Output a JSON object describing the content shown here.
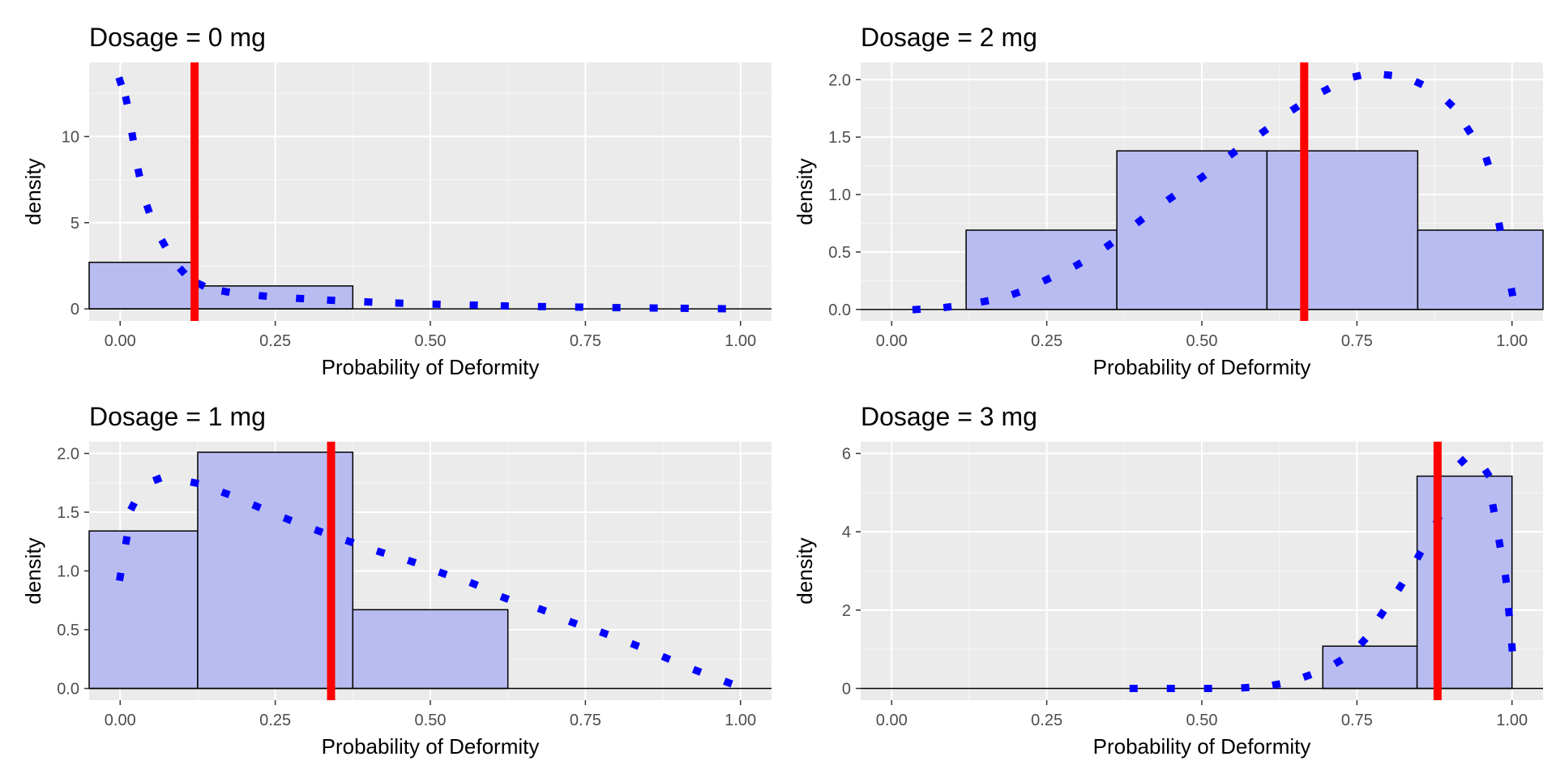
{
  "colors": {
    "panel_background": "#ebebeb",
    "grid": "#ffffff",
    "bar_fill": "#b9bcf0",
    "bar_outline": "#000000",
    "density_curve": "#0000ff",
    "mean_line": "#ff0000"
  },
  "chart_data": [
    {
      "type": "bar",
      "title": "Dosage = 0 mg",
      "xlabel": "Probability of Deformity",
      "ylabel": "density",
      "xlim": [
        -0.05,
        1.05
      ],
      "ylim": [
        -0.7,
        14.3
      ],
      "xticks": [
        0,
        0.25,
        0.5,
        0.75,
        1
      ],
      "xtick_labels": [
        "0.00",
        "0.25",
        "0.50",
        "0.75",
        "1.00"
      ],
      "yticks": [
        0,
        5,
        10
      ],
      "ytick_labels": [
        "0",
        "5",
        "10"
      ],
      "bins": [
        {
          "x0": -0.125,
          "x1": 0.125,
          "density": 2.7
        },
        {
          "x0": 0.125,
          "x1": 0.375,
          "density": 1.33
        }
      ],
      "curve": {
        "x": [
          0.0,
          0.01,
          0.02,
          0.03,
          0.045,
          0.07,
          0.1,
          0.13,
          0.17,
          0.23,
          0.29,
          0.34,
          0.4,
          0.45,
          0.51,
          0.57,
          0.62,
          0.68,
          0.74,
          0.8,
          0.86,
          0.91,
          0.97
        ],
        "y": [
          13.2,
          12.1,
          10.0,
          7.9,
          5.8,
          3.8,
          2.2,
          1.4,
          1.0,
          0.75,
          0.6,
          0.5,
          0.4,
          0.33,
          0.27,
          0.22,
          0.17,
          0.13,
          0.1,
          0.07,
          0.05,
          0.03,
          0.01
        ]
      },
      "mean_line_x": 0.12
    },
    {
      "type": "bar",
      "title": "Dosage = 2 mg",
      "xlabel": "Probability of Deformity",
      "ylabel": "density",
      "xlim": [
        -0.05,
        1.05
      ],
      "ylim": [
        -0.1,
        2.15
      ],
      "xticks": [
        0,
        0.25,
        0.5,
        0.75,
        1
      ],
      "xtick_labels": [
        "0.00",
        "0.25",
        "0.50",
        "0.75",
        "1.00"
      ],
      "yticks": [
        0,
        0.5,
        1,
        1.5,
        2
      ],
      "ytick_labels": [
        "0.0",
        "0.5",
        "1.0",
        "1.5",
        "2.0"
      ],
      "bins": [
        {
          "x0": -0.12,
          "x1": 0.12,
          "density": 0.0
        },
        {
          "x0": 0.12,
          "x1": 0.363,
          "density": 0.69
        },
        {
          "x0": 0.363,
          "x1": 0.605,
          "density": 1.38
        },
        {
          "x0": 0.605,
          "x1": 0.848,
          "density": 1.38
        },
        {
          "x0": 0.848,
          "x1": 1.09,
          "density": 0.69
        }
      ],
      "curve": {
        "x": [
          0.04,
          0.09,
          0.15,
          0.2,
          0.25,
          0.3,
          0.35,
          0.4,
          0.45,
          0.5,
          0.55,
          0.6,
          0.65,
          0.7,
          0.75,
          0.8,
          0.85,
          0.9,
          0.93,
          0.96,
          0.98,
          1.0
        ],
        "y": [
          0.0,
          0.02,
          0.07,
          0.14,
          0.26,
          0.39,
          0.56,
          0.77,
          0.97,
          1.15,
          1.36,
          1.55,
          1.75,
          1.91,
          2.03,
          2.04,
          1.97,
          1.79,
          1.56,
          1.29,
          0.72,
          0.15
        ]
      },
      "mean_line_x": 0.665
    },
    {
      "type": "bar",
      "title": "Dosage = 1 mg",
      "xlabel": "Probability of Deformity",
      "ylabel": "density",
      "xlim": [
        -0.05,
        1.05
      ],
      "ylim": [
        -0.1,
        2.1
      ],
      "xticks": [
        0,
        0.25,
        0.5,
        0.75,
        1
      ],
      "xtick_labels": [
        "0.00",
        "0.25",
        "0.50",
        "0.75",
        "1.00"
      ],
      "yticks": [
        0,
        0.5,
        1,
        1.5,
        2
      ],
      "ytick_labels": [
        "0.0",
        "0.5",
        "1.0",
        "1.5",
        "2.0"
      ],
      "bins": [
        {
          "x0": -0.125,
          "x1": 0.125,
          "density": 1.34
        },
        {
          "x0": 0.125,
          "x1": 0.375,
          "density": 2.01
        },
        {
          "x0": 0.375,
          "x1": 0.625,
          "density": 0.67
        },
        {
          "x0": 0.625,
          "x1": 0.875,
          "density": 0.0
        }
      ],
      "curve": {
        "x": [
          0.0,
          0.01,
          0.02,
          0.06,
          0.12,
          0.17,
          0.22,
          0.27,
          0.32,
          0.37,
          0.42,
          0.47,
          0.52,
          0.57,
          0.62,
          0.68,
          0.73,
          0.78,
          0.83,
          0.88,
          0.93,
          0.98
        ],
        "y": [
          0.95,
          1.26,
          1.55,
          1.78,
          1.75,
          1.66,
          1.55,
          1.44,
          1.34,
          1.25,
          1.16,
          1.08,
          0.98,
          0.89,
          0.77,
          0.67,
          0.56,
          0.47,
          0.37,
          0.26,
          0.15,
          0.05
        ]
      },
      "mean_line_x": 0.34
    },
    {
      "type": "bar",
      "title": "Dosage = 3 mg",
      "xlabel": "Probability of Deformity",
      "ylabel": "density",
      "xlim": [
        -0.05,
        1.05
      ],
      "ylim": [
        -0.3,
        6.3
      ],
      "xticks": [
        0,
        0.25,
        0.5,
        0.75,
        1
      ],
      "xtick_labels": [
        "0.00",
        "0.25",
        "0.50",
        "0.75",
        "1.00"
      ],
      "yticks": [
        0,
        2,
        4,
        6
      ],
      "ytick_labels": [
        "0",
        "2",
        "4",
        "6"
      ],
      "bins": [
        {
          "x0": 0.388,
          "x1": 0.542,
          "density": 0.0
        },
        {
          "x0": 0.542,
          "x1": 0.695,
          "density": 0.0
        },
        {
          "x0": 0.695,
          "x1": 0.847,
          "density": 1.08
        },
        {
          "x0": 0.847,
          "x1": 1.0,
          "density": 5.42
        }
      ],
      "curve": {
        "x": [
          0.39,
          0.45,
          0.51,
          0.57,
          0.62,
          0.67,
          0.72,
          0.76,
          0.79,
          0.82,
          0.85,
          0.88,
          0.92,
          0.96,
          0.97,
          0.98,
          0.99,
          0.995,
          1.0
        ],
        "y": [
          0.0,
          0.0,
          0.0,
          0.02,
          0.1,
          0.32,
          0.68,
          1.2,
          1.9,
          2.6,
          3.4,
          4.3,
          5.8,
          5.5,
          4.6,
          3.7,
          2.8,
          1.95,
          1.05
        ]
      },
      "mean_line_x": 0.88
    }
  ]
}
